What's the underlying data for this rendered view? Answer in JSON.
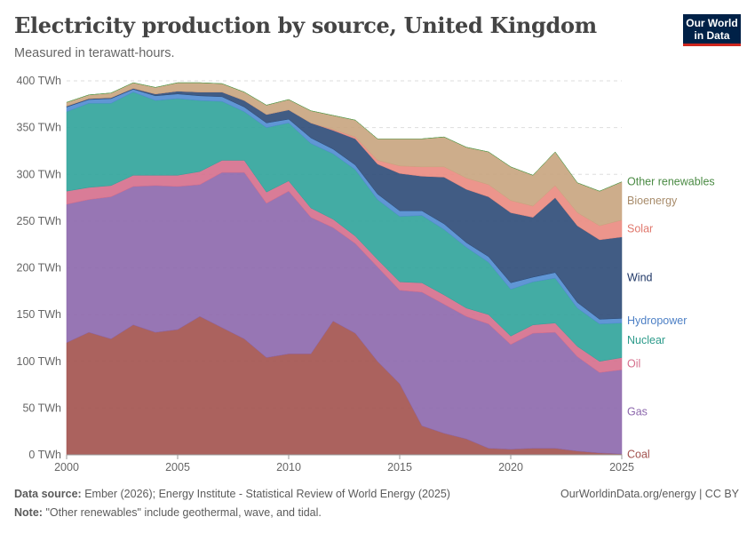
{
  "header": {
    "title": "Electricity production by source, United Kingdom",
    "subtitle": "Measured in terawatt-hours.",
    "logo_line1": "Our World",
    "logo_line2": "in Data"
  },
  "footer": {
    "source_label": "Data source:",
    "source_text": "Ember (2026); Energy Institute - Statistical Review of World Energy (2025)",
    "note_label": "Note:",
    "note_text": "\"Other renewables\" include geothermal, wave, and tidal.",
    "credit": "OurWorldinData.org/energy | CC BY"
  },
  "chart_data": {
    "type": "area",
    "stacked": true,
    "title": "Electricity production by source, United Kingdom",
    "subtitle": "Measured in terawatt-hours.",
    "xlabel": "",
    "ylabel": "",
    "x_ticks": [
      2000,
      2005,
      2010,
      2015,
      2020,
      2025
    ],
    "y_ticks": [
      0,
      50,
      100,
      150,
      200,
      250,
      300,
      350,
      400
    ],
    "y_tick_labels": [
      "0 TWh",
      "50 TWh",
      "100 TWh",
      "150 TWh",
      "200 TWh",
      "250 TWh",
      "300 TWh",
      "350 TWh",
      "400 TWh"
    ],
    "xlim": [
      2000,
      2025
    ],
    "ylim": [
      0,
      400
    ],
    "grid": "horizontal dashed",
    "legend": "right, inline labels",
    "x": [
      2000,
      2001,
      2002,
      2003,
      2004,
      2005,
      2006,
      2007,
      2008,
      2009,
      2010,
      2011,
      2012,
      2013,
      2014,
      2015,
      2016,
      2017,
      2018,
      2019,
      2020,
      2021,
      2022,
      2023,
      2024,
      2025
    ],
    "series": [
      {
        "name": "Coal",
        "color": "#a2514d",
        "label_color": "#a2514d",
        "values": [
          120,
          131,
          124,
          139,
          131,
          134,
          148,
          136,
          124,
          104,
          108,
          108,
          143,
          130,
          100,
          76,
          31,
          23,
          17,
          7,
          6,
          7,
          7,
          4,
          2,
          1
        ]
      },
      {
        "name": "Gas",
        "color": "#8c67ac",
        "label_color": "#8c67ac",
        "values": [
          148,
          142,
          152,
          148,
          157,
          153,
          141,
          166,
          178,
          165,
          174,
          146,
          100,
          96,
          101,
          100,
          143,
          138,
          131,
          133,
          112,
          123,
          124,
          101,
          86,
          90
        ]
      },
      {
        "name": "Oil",
        "color": "#d56e8c",
        "label_color": "#d56e8c",
        "values": [
          14,
          13,
          12,
          12,
          11,
          12,
          14,
          13,
          13,
          12,
          11,
          10,
          9,
          8,
          8,
          9,
          10,
          10,
          9,
          10,
          9,
          9,
          10,
          11,
          12,
          13
        ]
      },
      {
        "name": "Nuclear",
        "color": "#2fa39a",
        "label_color": "#2d9b8b",
        "values": [
          85,
          90,
          88,
          89,
          80,
          82,
          76,
          63,
          52,
          69,
          62,
          69,
          70,
          71,
          64,
          70,
          72,
          70,
          65,
          56,
          50,
          46,
          48,
          41,
          40,
          37
        ]
      },
      {
        "name": "Hydropower",
        "color": "#4f8bd0",
        "label_color": "#4c7fc5",
        "values": [
          5,
          4,
          5,
          3,
          5,
          5,
          5,
          5,
          5,
          5,
          4,
          6,
          5,
          5,
          6,
          6,
          5,
          6,
          5,
          6,
          7,
          5,
          6,
          6,
          5,
          5
        ]
      },
      {
        "name": "Wind",
        "color": "#2c4a77",
        "label_color": "#1f3766",
        "values": [
          1,
          1,
          1,
          1,
          2,
          3,
          4,
          5,
          7,
          9,
          10,
          16,
          20,
          28,
          32,
          40,
          37,
          50,
          57,
          64,
          75,
          64,
          80,
          82,
          85,
          87
        ]
      },
      {
        "name": "Solar",
        "color": "#ea8a7f",
        "label_color": "#e0776c",
        "values": [
          0,
          0,
          0,
          0,
          0,
          0,
          0,
          0,
          0,
          0,
          0,
          0,
          1,
          2,
          4,
          8,
          10,
          11,
          12,
          13,
          13,
          12,
          13,
          14,
          15,
          18
        ]
      },
      {
        "name": "Bioenergy",
        "color": "#c8a47e",
        "label_color": "#a88c6b",
        "values": [
          4,
          4,
          5,
          6,
          7,
          9,
          10,
          9,
          9,
          10,
          11,
          13,
          15,
          18,
          23,
          29,
          30,
          32,
          33,
          35,
          36,
          33,
          36,
          32,
          37,
          41
        ]
      },
      {
        "name": "Other renewables",
        "color": "#4c9a48",
        "label_color": "#4a8a43",
        "values": [
          0,
          0,
          0,
          0,
          0,
          0,
          0,
          0,
          0,
          0,
          0,
          0,
          0,
          0,
          0,
          0,
          0,
          0,
          0,
          0,
          0,
          0,
          0,
          0,
          0,
          0
        ]
      }
    ]
  }
}
